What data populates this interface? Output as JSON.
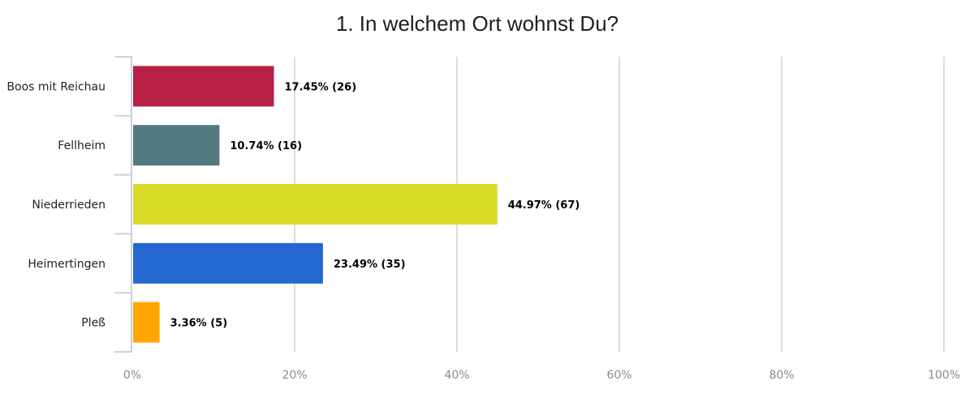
{
  "chart_data": {
    "type": "bar",
    "orientation": "horizontal",
    "title": "1. In welchem Ort wohnst Du?",
    "categories": [
      "Boos mit Reichau",
      "Fellheim",
      "Niederrieden",
      "Heimertingen",
      "Pleß"
    ],
    "values": [
      17.45,
      10.74,
      44.97,
      23.49,
      3.36
    ],
    "counts": [
      26,
      16,
      67,
      35,
      5
    ],
    "value_labels": [
      "17.45% (26)",
      "10.74% (16)",
      "44.97% (67)",
      "23.49% (35)",
      "3.36% (5)"
    ],
    "colors": [
      "#b82045",
      "#517b80",
      "#d8db28",
      "#2568cf",
      "#ffa600"
    ],
    "xlim": [
      0,
      100
    ],
    "x_ticks": [
      0,
      20,
      40,
      60,
      80,
      100
    ],
    "x_tick_labels": [
      "0%",
      "20%",
      "40%",
      "60%",
      "80%",
      "100%"
    ],
    "grid": true,
    "xlabel": "",
    "ylabel": ""
  }
}
